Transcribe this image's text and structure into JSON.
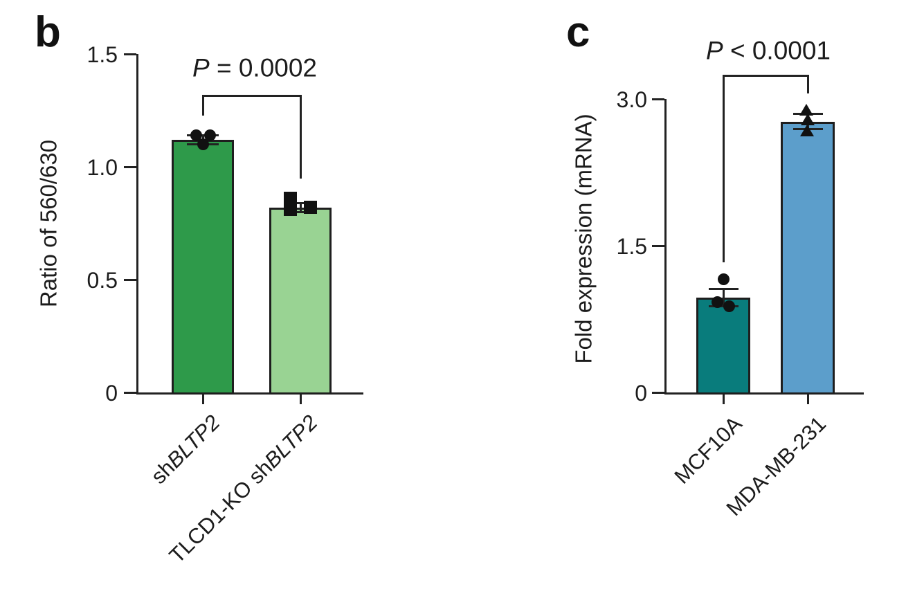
{
  "figure": {
    "background": "#ffffff",
    "ink_color": "#222222",
    "point_color": "#111111"
  },
  "chart_data": [
    {
      "id": "b",
      "panel_letter": "b",
      "type": "bar",
      "title": "",
      "ylabel": "Ratio of 560/630",
      "xlabel": "",
      "ylim": [
        0,
        1.5
      ],
      "yticks": [
        0,
        0.5,
        1.0,
        1.5
      ],
      "ytick_labels": [
        "0",
        "0.5",
        "1.0",
        "1.5"
      ],
      "categories": [
        "shBLTP2",
        "TLCD1-KO shBLTP2"
      ],
      "category_segments": [
        [
          {
            "t": "sh",
            "italic": false
          },
          {
            "t": "BLTP2",
            "italic": true
          }
        ],
        [
          {
            "t": "TLCD1-KO sh",
            "italic": false
          },
          {
            "t": "BLTP2",
            "italic": true
          }
        ]
      ],
      "series": [
        {
          "name": "shBLTP2",
          "mean": 1.12,
          "sem": 0.02,
          "points": [
            1.14,
            1.14,
            1.1
          ],
          "marker": "circle",
          "color": "#2e9a4a"
        },
        {
          "name": "TLCD1-KO shBLTP2",
          "mean": 0.82,
          "sem": 0.02,
          "points": [
            0.86,
            0.82,
            0.81
          ],
          "marker": "square",
          "color": "#99d393"
        }
      ],
      "significance": "P = 0.0002",
      "p_segments": [
        {
          "t": "P",
          "italic": true
        },
        {
          "t": " = 0.0002",
          "italic": false
        }
      ],
      "legend": "none",
      "grid": false
    },
    {
      "id": "c",
      "panel_letter": "c",
      "type": "bar",
      "title": "",
      "ylabel": "Fold expression (mRNA)",
      "xlabel": "",
      "ylim": [
        0,
        3.0
      ],
      "yticks": [
        0,
        1.5,
        3.0
      ],
      "ytick_labels": [
        "0",
        "1.5",
        "3.0"
      ],
      "categories": [
        "MCF10A",
        "MDA-MB-231"
      ],
      "category_segments": [
        [
          {
            "t": "MCF10A",
            "italic": false
          }
        ],
        [
          {
            "t": "MDA-MB-231",
            "italic": false
          }
        ]
      ],
      "series": [
        {
          "name": "MCF10A",
          "mean": 0.97,
          "sem": 0.09,
          "points": [
            1.16,
            0.92,
            0.88
          ],
          "marker": "circle",
          "color": "#097c7c"
        },
        {
          "name": "MDA-MB-231",
          "mean": 2.77,
          "sem": 0.08,
          "points": [
            2.89,
            2.79,
            2.68
          ],
          "marker": "triangle",
          "color": "#5c9ecb"
        }
      ],
      "significance": "P < 0.0001",
      "p_segments": [
        {
          "t": "P",
          "italic": true
        },
        {
          "t": " < 0.0001",
          "italic": false
        }
      ],
      "legend": "none",
      "grid": false
    }
  ]
}
